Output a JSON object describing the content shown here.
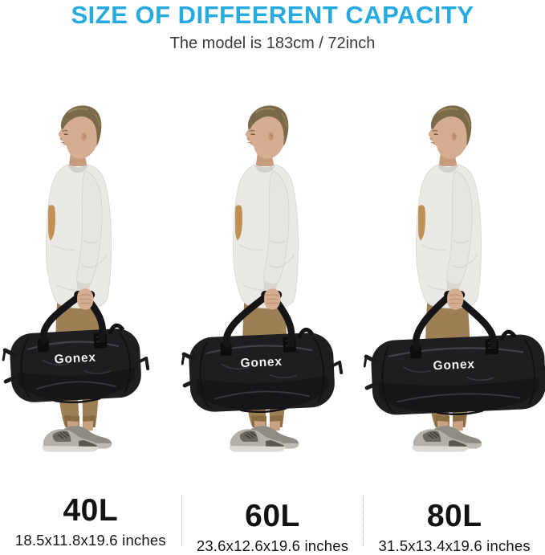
{
  "header": {
    "title": "SIZE OF DIFFEERENT CAPACITY",
    "subtitle": "The model is 183cm / 72inch"
  },
  "colors": {
    "title_accent": "#25abdf",
    "bag": "#1e1e21",
    "bag_logo_text": "#f2f2f2",
    "caption_text": "#131313"
  },
  "figures": [
    {
      "capacity": "40L",
      "dimensions": "18.5x11.8x19.6 inches",
      "bag_logo": "Gonex"
    },
    {
      "capacity": "60L",
      "dimensions": "23.6x12.6x19.6 inches",
      "bag_logo": "Gonex"
    },
    {
      "capacity": "80L",
      "dimensions": "31.5x13.4x19.6 inches",
      "bag_logo": "Gonex"
    }
  ]
}
